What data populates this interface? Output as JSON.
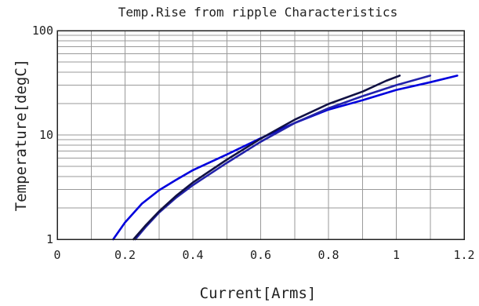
{
  "chart_data": {
    "type": "line",
    "title": "Temp.Rise from ripple Characteristics",
    "xlabel": "Current[Arms]",
    "ylabel": "Temperature[degC]",
    "x_scale": "linear",
    "y_scale": "log",
    "xlim": [
      0,
      1.2
    ],
    "ylim": [
      1,
      100
    ],
    "grid": true,
    "x_ticks": [
      "0",
      "0.2",
      "0.4",
      "0.6",
      "0.8",
      "1",
      "1.2"
    ],
    "y_ticks": [
      "1",
      "10",
      "100"
    ],
    "series": [
      {
        "color": "#0000dd",
        "points": [
          [
            0.165,
            1.0
          ],
          [
            0.2,
            1.45
          ],
          [
            0.25,
            2.2
          ],
          [
            0.3,
            2.95
          ],
          [
            0.35,
            3.7
          ],
          [
            0.4,
            4.6
          ],
          [
            0.5,
            6.5
          ],
          [
            0.6,
            9.3
          ],
          [
            0.7,
            13.0
          ],
          [
            0.8,
            17.5
          ],
          [
            0.9,
            21.5
          ],
          [
            1.0,
            27.0
          ],
          [
            1.1,
            32.0
          ],
          [
            1.18,
            37.0
          ]
        ]
      },
      {
        "color": "#2222aa",
        "points": [
          [
            0.23,
            1.0
          ],
          [
            0.26,
            1.3
          ],
          [
            0.3,
            1.8
          ],
          [
            0.35,
            2.5
          ],
          [
            0.4,
            3.3
          ],
          [
            0.5,
            5.4
          ],
          [
            0.6,
            8.6
          ],
          [
            0.7,
            13.0
          ],
          [
            0.8,
            18.0
          ],
          [
            0.9,
            23.5
          ],
          [
            1.0,
            30.0
          ],
          [
            1.1,
            37.0
          ]
        ]
      },
      {
        "color": "#111144",
        "points": [
          [
            0.225,
            1.0
          ],
          [
            0.26,
            1.35
          ],
          [
            0.3,
            1.85
          ],
          [
            0.35,
            2.6
          ],
          [
            0.4,
            3.5
          ],
          [
            0.5,
            5.8
          ],
          [
            0.6,
            9.2
          ],
          [
            0.7,
            14.0
          ],
          [
            0.8,
            19.8
          ],
          [
            0.9,
            26.0
          ],
          [
            0.97,
            33.0
          ],
          [
            1.01,
            37.0
          ]
        ]
      }
    ]
  }
}
